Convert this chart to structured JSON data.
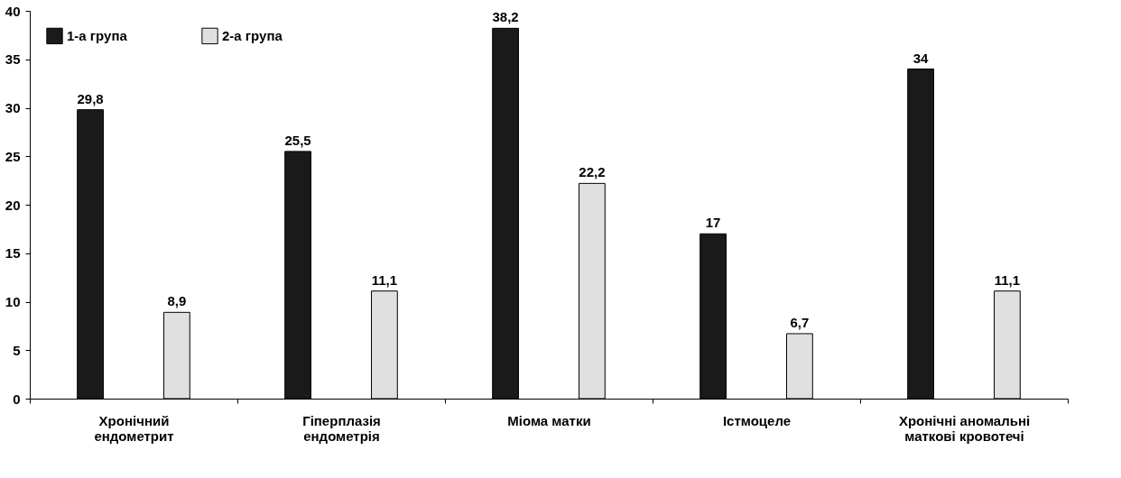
{
  "chart_data": {
    "type": "bar",
    "categories": [
      "Хронічний ендометрит",
      "Гіперплазія ендометрія",
      "Міома матки",
      "Істмоцеле",
      "Хронічні аномальні маткові кровотечі"
    ],
    "series": [
      {
        "name": "1-а група",
        "color": "#1a1a1a",
        "values": [
          29.8,
          25.5,
          38.2,
          17,
          34
        ],
        "value_labels": [
          "29,8",
          "25,5",
          "38,2",
          "17",
          "34"
        ]
      },
      {
        "name": "2-а група",
        "color": "#e0e0e0",
        "values": [
          8.9,
          11.1,
          22.2,
          6.7,
          11.1
        ],
        "value_labels": [
          "8,9",
          "11,1",
          "22,2",
          "6,7",
          "11,1"
        ]
      }
    ],
    "ylim": [
      0,
      40
    ],
    "yticks": [
      0,
      5,
      10,
      15,
      20,
      25,
      30,
      35,
      40
    ],
    "grid": false,
    "legend": "top left"
  }
}
